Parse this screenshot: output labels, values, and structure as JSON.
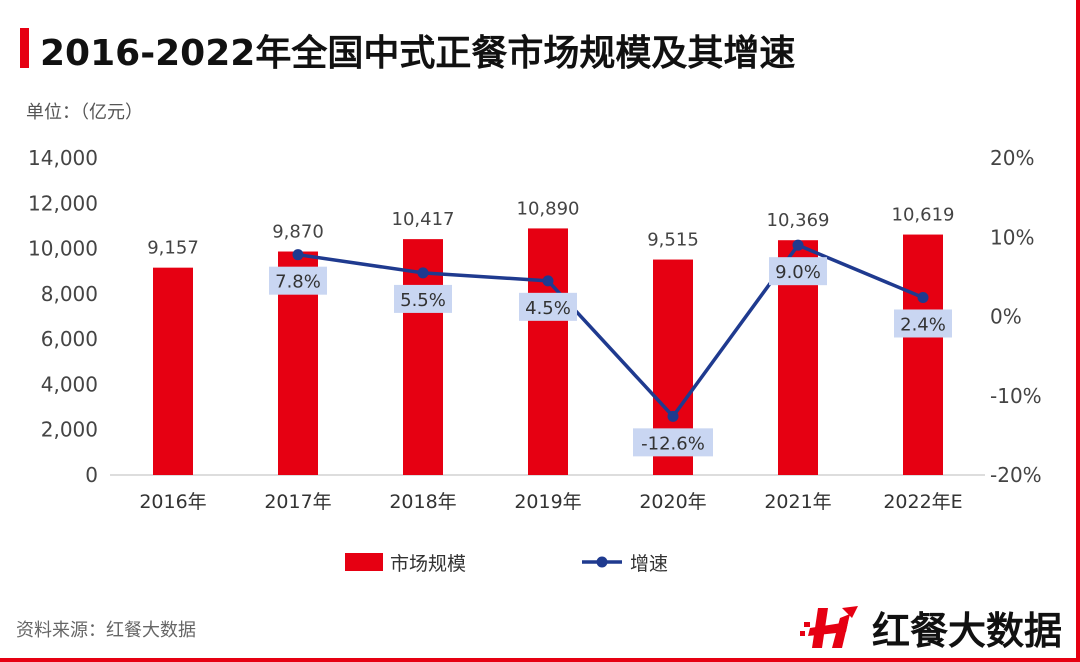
{
  "title": "2016-2022年全国中式正餐市场规模及其增速",
  "unit": "单位：（亿元）",
  "source": "资料来源：红餐大数据",
  "logo_text": "红餐大数据",
  "colors": {
    "bar": "#e60012",
    "line": "#1f3a8f",
    "label_bg": "#c9d6f2"
  },
  "chart_data": {
    "type": "bar",
    "categories": [
      "2016年",
      "2017年",
      "2018年",
      "2019年",
      "2020年",
      "2021年",
      "2022年E"
    ],
    "series": [
      {
        "name": "市场规模",
        "type": "bar",
        "axis": "left",
        "values": [
          9157,
          9870,
          10417,
          10890,
          9515,
          10369,
          10619
        ],
        "labels": [
          "9,157",
          "9,870",
          "10,417",
          "10,890",
          "9,515",
          "10,369",
          "10,619"
        ]
      },
      {
        "name": "增速",
        "type": "line",
        "axis": "right",
        "values": [
          null,
          7.8,
          5.5,
          4.5,
          -12.6,
          9.0,
          2.4
        ],
        "labels": [
          "",
          "7.8%",
          "5.5%",
          "4.5%",
          "-12.6%",
          "9.0%",
          "2.4%"
        ]
      }
    ],
    "ylim": [
      0,
      14000
    ],
    "y_ticks": [
      "0",
      "2,000",
      "4,000",
      "6,000",
      "8,000",
      "10,000",
      "12,000",
      "14,000"
    ],
    "y2lim": [
      -20,
      20
    ],
    "y2_ticks": [
      "-20%",
      "-10%",
      "0%",
      "10%",
      "20%"
    ],
    "legend": [
      "市场规模",
      "增速"
    ],
    "legend_position": "bottom"
  }
}
